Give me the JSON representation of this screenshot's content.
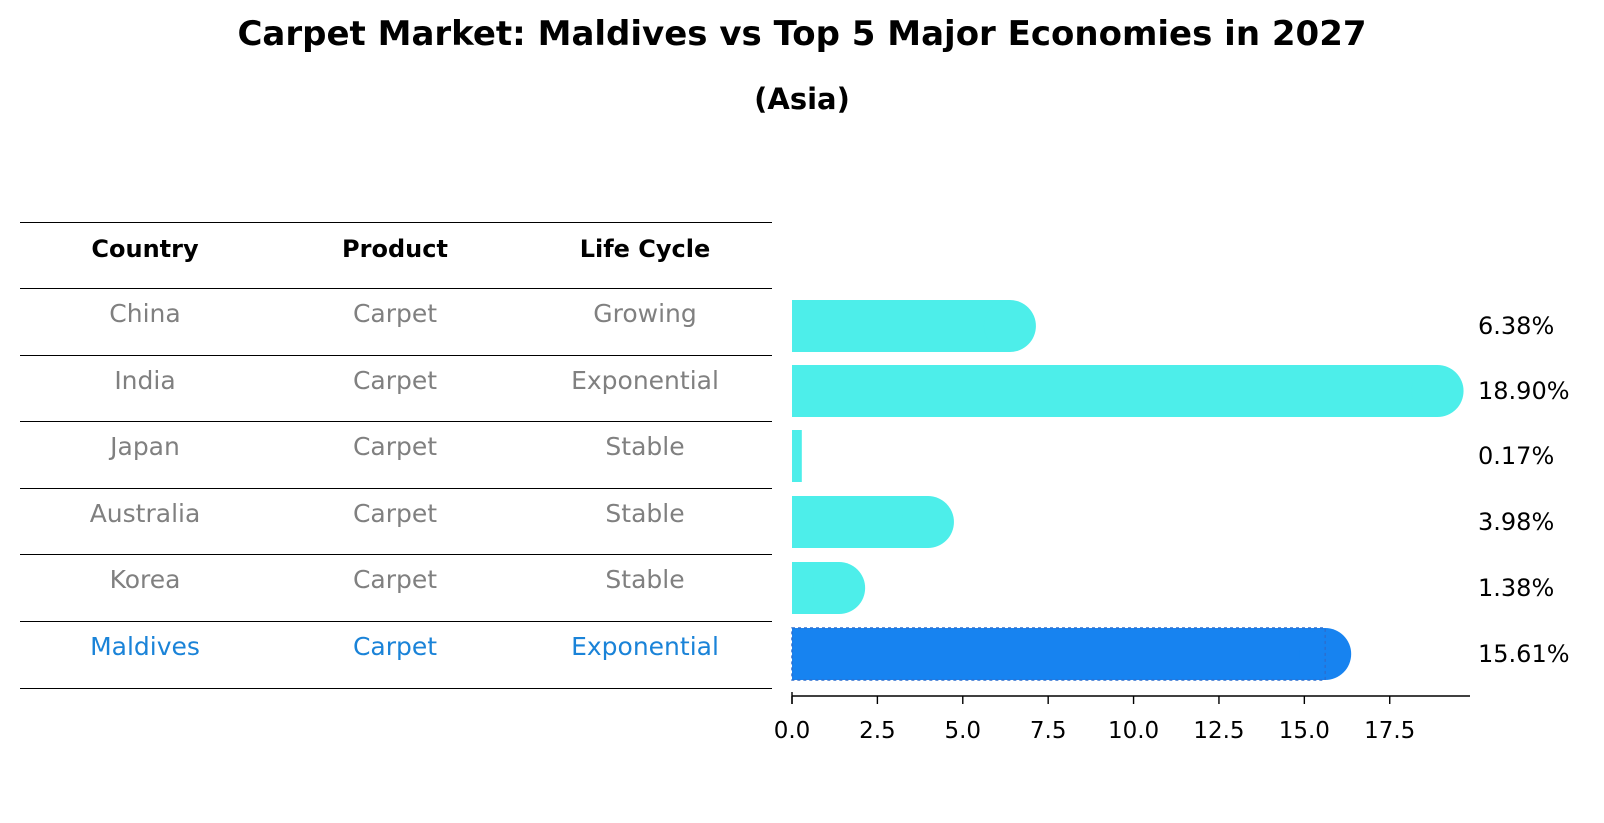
{
  "title": "Carpet Market: Maldives vs Top 5 Major Economies in 2027",
  "subtitle": "(Asia)",
  "table": {
    "headers": [
      "Country",
      "Product",
      "Life Cycle"
    ],
    "rows": [
      {
        "country": "China",
        "product": "Carpet",
        "life_cycle": "Growing"
      },
      {
        "country": "India",
        "product": "Carpet",
        "life_cycle": "Exponential"
      },
      {
        "country": "Japan",
        "product": "Carpet",
        "life_cycle": "Stable"
      },
      {
        "country": "Australia",
        "product": "Carpet",
        "life_cycle": "Stable"
      },
      {
        "country": "Korea",
        "product": "Carpet",
        "life_cycle": "Stable"
      },
      {
        "country": "Maldives",
        "product": "Carpet",
        "life_cycle": "Exponential"
      }
    ]
  },
  "colors": {
    "bar": "#4deeea",
    "highlight_bar": "#1783f0",
    "highlight_text": "#1a83d8",
    "muted_text": "#808080"
  },
  "chart_data": {
    "type": "bar",
    "orientation": "horizontal",
    "title": "Carpet Market: Maldives vs Top 5 Major Economies in 2027",
    "subtitle": "(Asia)",
    "categories": [
      "China",
      "India",
      "Japan",
      "Australia",
      "Korea",
      "Maldives"
    ],
    "values": [
      6.38,
      18.9,
      0.17,
      3.98,
      1.38,
      15.61
    ],
    "value_labels": [
      "6.38%",
      "18.90%",
      "0.17%",
      "3.98%",
      "1.38%",
      "15.61%"
    ],
    "highlight": "Maldives",
    "xlim": [
      0,
      19.85
    ],
    "xticks": [
      "0.0",
      "2.5",
      "5.0",
      "7.5",
      "10.0",
      "12.5",
      "15.0",
      "17.5"
    ],
    "xlabel": "",
    "ylabel": "",
    "grid": false
  }
}
